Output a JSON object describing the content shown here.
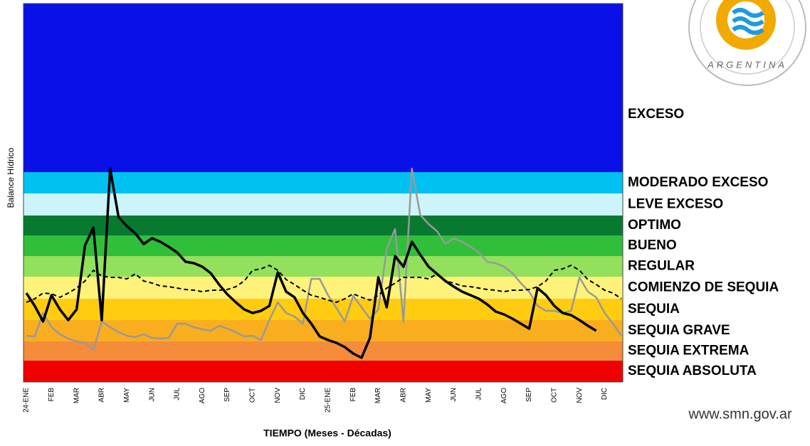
{
  "chart_data": {
    "type": "band-line",
    "y_label": "Balance Hídrico",
    "x_label": "TIEMPO (Meses - Décadas)",
    "source": "www.smn.gov.ar",
    "logo_text": "ARGENTINA",
    "ylim": [
      0,
      532
    ],
    "categories": [
      "24-ENE",
      null,
      null,
      "FEB",
      null,
      null,
      "MAR",
      null,
      null,
      "ABR",
      null,
      null,
      "MAY",
      null,
      null,
      "JUN",
      null,
      null,
      "JUL",
      null,
      null,
      "AGO",
      null,
      null,
      "SEP",
      null,
      null,
      "OCT",
      null,
      null,
      "NOV",
      null,
      null,
      "DIC",
      null,
      null,
      "25-ENE",
      null,
      null,
      "FEB",
      null,
      null,
      "MAR",
      null,
      null,
      "ABR",
      null,
      null,
      "MAY",
      null,
      null,
      "JUN",
      null,
      null,
      "JUL",
      null,
      null,
      "AGO",
      null,
      null,
      "SEP",
      null,
      null,
      "OCT",
      null,
      null,
      "NOV",
      null,
      null,
      "DIC",
      null,
      null
    ],
    "bands": [
      {
        "label": "EXCESO",
        "from": 295,
        "to": 532,
        "color": "#0a10e8"
      },
      {
        "label": "MODERADO EXCESO",
        "from": 265,
        "to": 295,
        "color": "#00c2f2"
      },
      {
        "label": "LEVE EXCESO",
        "from": 234,
        "to": 265,
        "color": "#ccf5fb"
      },
      {
        "label": "OPTIMO",
        "from": 206,
        "to": 234,
        "color": "#087a30"
      },
      {
        "label": "BUENO",
        "from": 177,
        "to": 206,
        "color": "#2fbf3a"
      },
      {
        "label": "REGULAR",
        "from": 148,
        "to": 177,
        "color": "#92e05c"
      },
      {
        "label": "COMIENZO DE SEQUIA",
        "from": 117,
        "to": 148,
        "color": "#fff27a"
      },
      {
        "label": "SEQUIA",
        "from": 87,
        "to": 117,
        "color": "#ffcc10"
      },
      {
        "label": "SEQUIA GRAVE",
        "from": 57,
        "to": 87,
        "color": "#f9ae20"
      },
      {
        "label": "SEQUIA EXTREMA",
        "from": 30,
        "to": 57,
        "color": "#f48c3a"
      },
      {
        "label": "SEQUIA ABSOLUTA",
        "from": 0,
        "to": 30,
        "color": "#f00000"
      }
    ],
    "series": [
      {
        "color": "#999999",
        "width": 2.5,
        "dashed": false,
        "values": [
          65,
          64,
          97,
          77,
          67,
          61,
          57,
          55,
          45,
          85,
          77,
          70,
          65,
          63,
          67,
          62,
          61,
          62,
          82,
          82,
          77,
          74,
          72,
          79,
          75,
          70,
          64,
          65,
          59,
          87,
          112,
          97,
          92,
          82,
          145,
          145,
          122,
          104,
          85,
          121,
          105,
          89,
          102,
          187,
          215,
          85,
          300,
          235,
          222,
          212,
          194,
          202,
          197,
          190,
          182,
          169,
          167,
          162,
          153,
          139,
          127,
          107,
          100,
          100,
          97,
          100,
          147,
          127,
          119,
          97,
          82,
          65
        ]
      },
      {
        "color": "#000000",
        "width": 2,
        "dashed": true,
        "values": [
          112,
          117,
          125,
          124,
          119,
          125,
          132,
          142,
          157,
          149,
          147,
          147,
          145,
          152,
          142,
          139,
          135,
          134,
          132,
          130,
          129,
          127,
          129,
          129,
          130,
          134,
          142,
          157,
          159,
          164,
          157,
          144,
          137,
          129,
          122,
          119,
          115,
          112,
          117,
          124,
          119,
          115,
          122,
          132,
          139,
          147,
          147,
          147,
          145,
          152,
          142,
          139,
          135,
          134,
          132,
          130,
          129,
          127,
          129,
          129,
          130,
          134,
          142,
          157,
          159,
          164,
          157,
          144,
          137,
          129,
          125,
          117
        ]
      },
      {
        "color": "#000000",
        "width": 3.5,
        "dashed": false,
        "values": [
          125,
          107,
          85,
          122,
          102,
          87,
          102,
          192,
          217,
          87,
          300,
          232,
          219,
          209,
          194,
          202,
          197,
          190,
          182,
          169,
          167,
          162,
          153,
          137,
          123,
          112,
          102,
          97,
          100,
          107,
          154,
          127,
          119,
          97,
          82,
          64,
          59,
          55,
          49,
          40,
          34,
          62,
          147,
          105,
          177,
          162,
          197,
          179,
          162,
          152,
          142,
          134,
          127,
          122,
          117,
          109,
          99,
          95,
          89,
          82,
          75,
          132,
          122,
          107,
          97,
          94,
          87,
          79,
          72,
          null,
          null,
          null
        ]
      }
    ]
  }
}
